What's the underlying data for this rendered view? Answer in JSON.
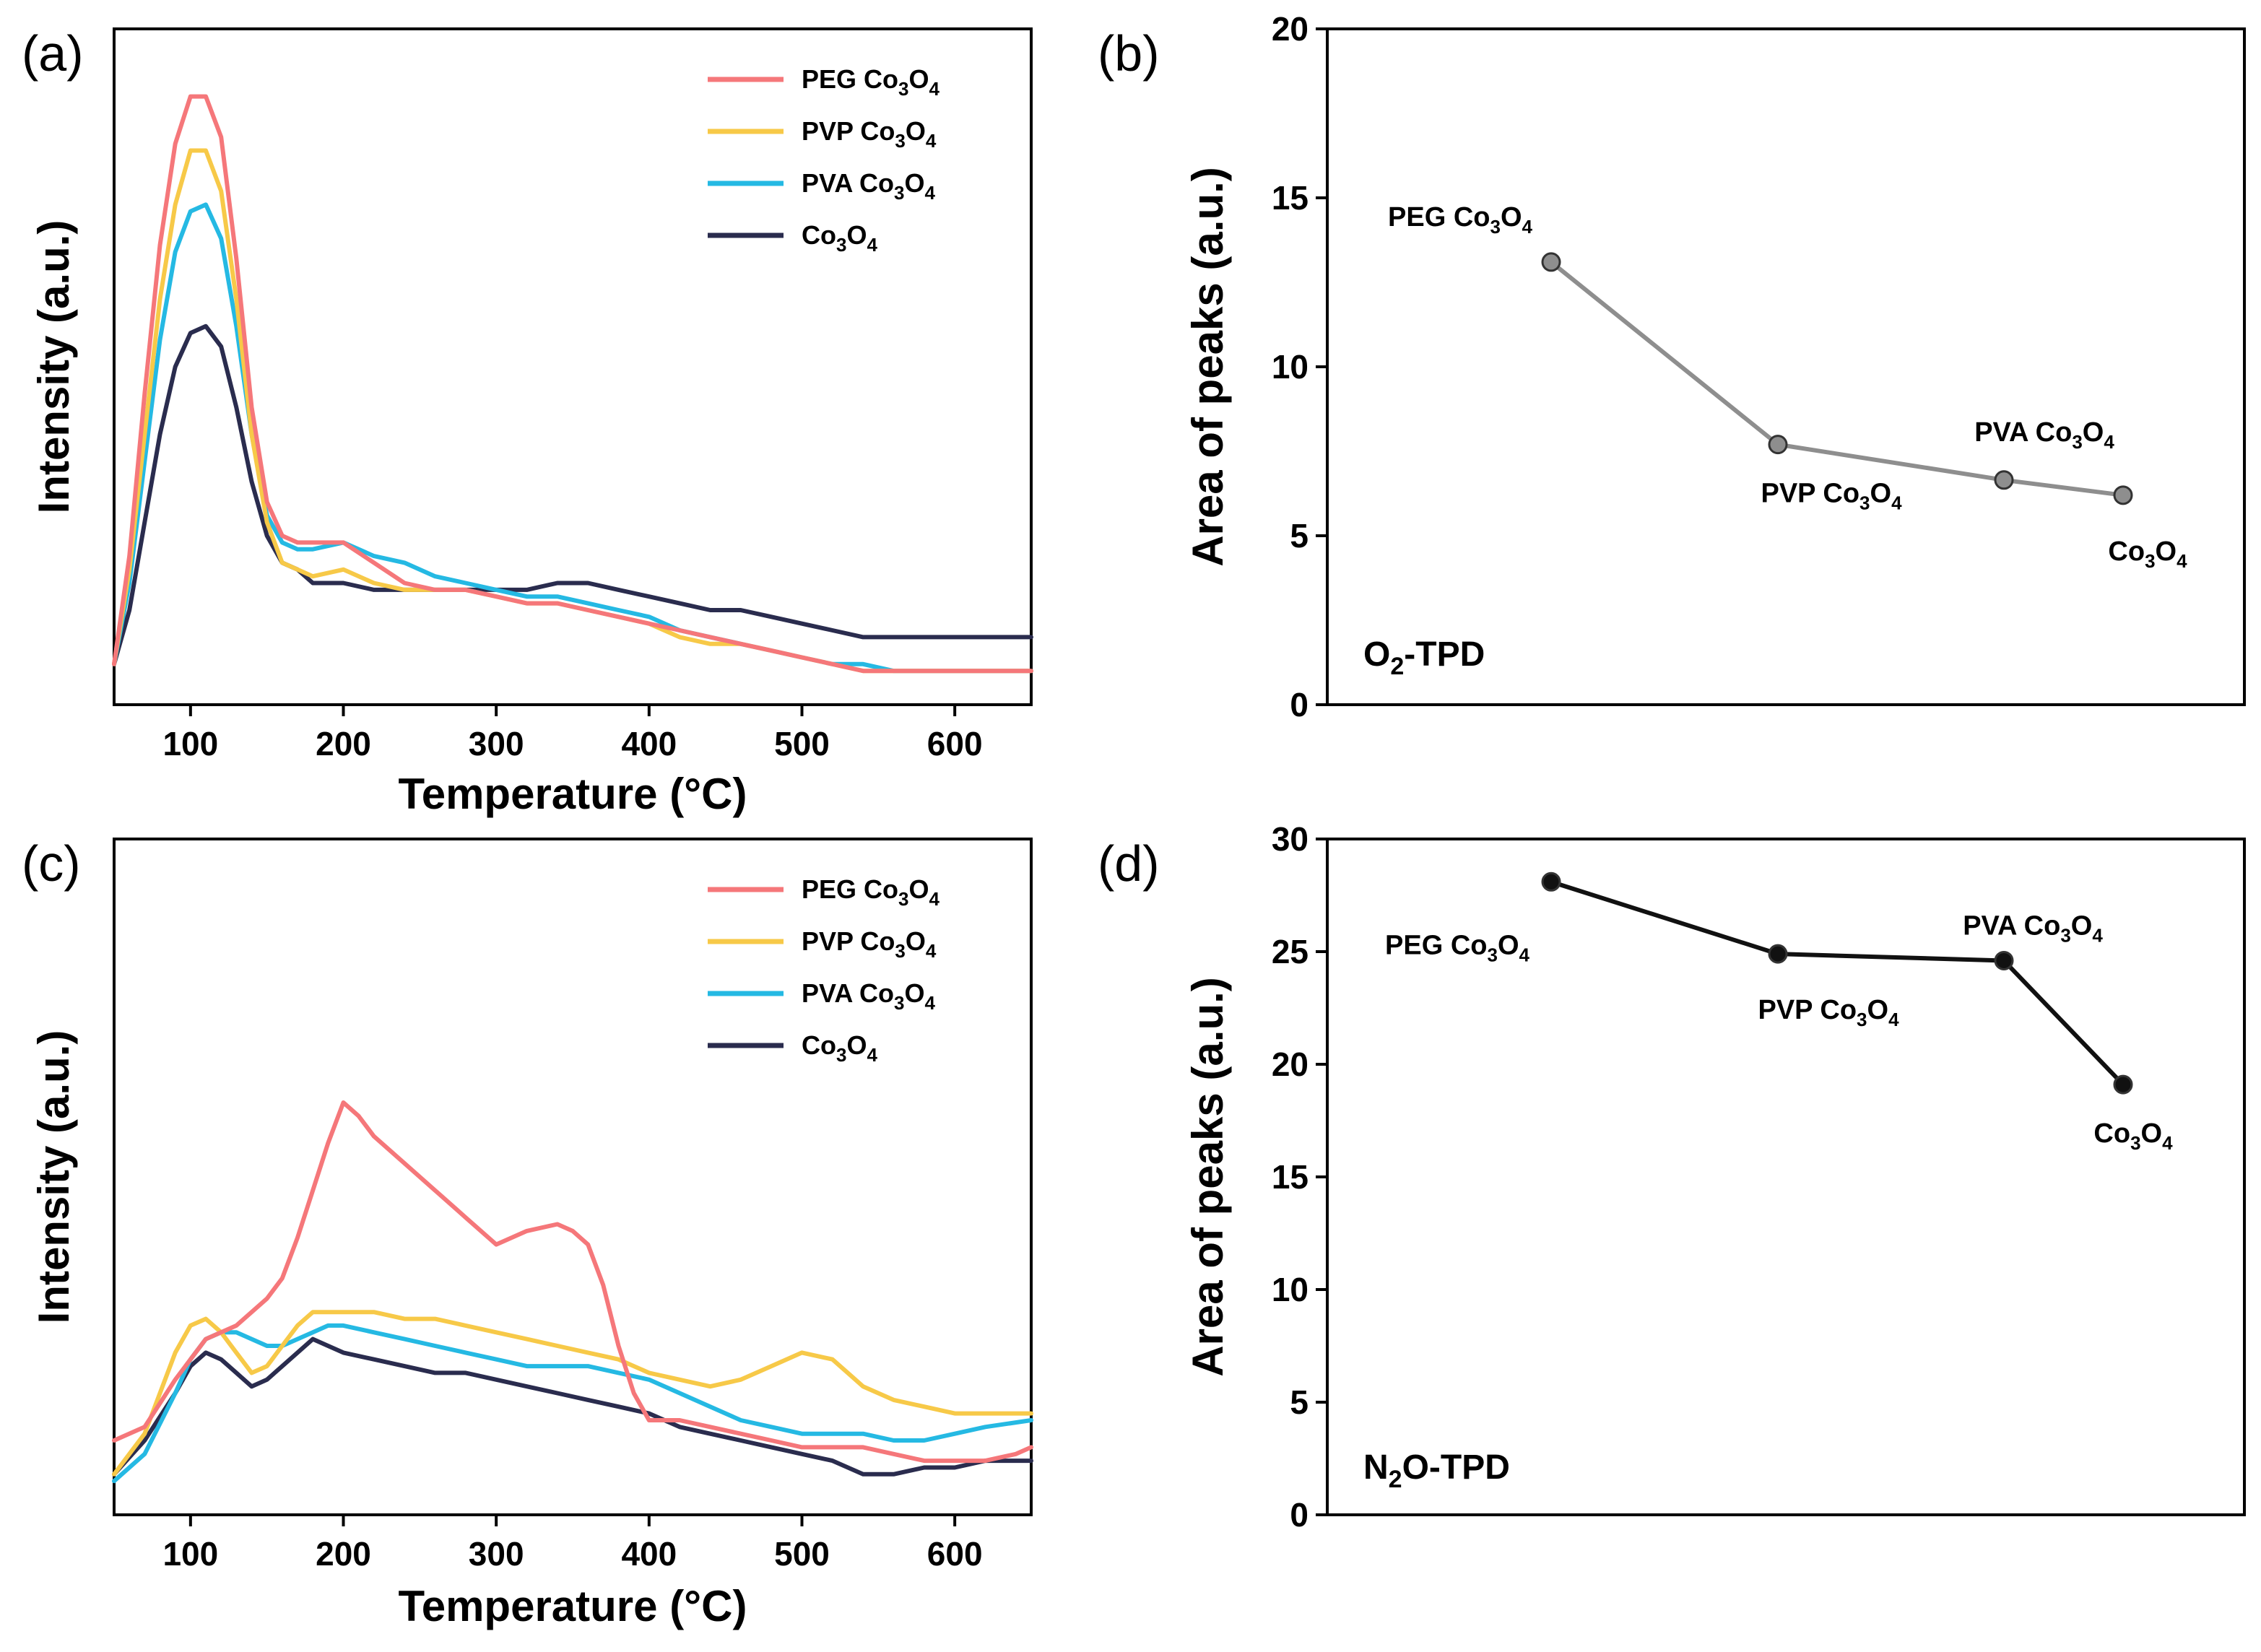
{
  "chart_data": [
    {
      "panel": "(a)",
      "type": "line",
      "xlabel": "Temperature (°C)",
      "ylabel": "Intensity (a.u.)",
      "xlim": [
        50,
        650
      ],
      "ylim": [
        0,
        100
      ],
      "xticks": [
        100,
        200,
        300,
        400,
        500,
        600
      ],
      "legend_position": "top-right",
      "series": [
        {
          "name_main": "PEG Co",
          "sub1": "3",
          "mid": "O",
          "sub2": "4",
          "color": "#f5777a",
          "x": [
            50,
            60,
            70,
            80,
            90,
            100,
            110,
            120,
            130,
            140,
            150,
            160,
            170,
            180,
            200,
            220,
            240,
            260,
            280,
            300,
            320,
            340,
            360,
            380,
            400,
            420,
            440,
            460,
            480,
            500,
            520,
            540,
            560,
            580,
            600,
            620,
            650
          ],
          "y": [
            6,
            22,
            46,
            68,
            83,
            90,
            90,
            84,
            66,
            44,
            30,
            25,
            24,
            24,
            24,
            21,
            18,
            17,
            17,
            16,
            15,
            15,
            14,
            13,
            12,
            11,
            10,
            9,
            8,
            7,
            6,
            5,
            5,
            5,
            5,
            5,
            5
          ]
        },
        {
          "name_main": "PVP Co",
          "sub1": "3",
          "mid": "O",
          "sub2": "4",
          "color": "#f7c948",
          "x": [
            50,
            60,
            70,
            80,
            90,
            100,
            110,
            120,
            130,
            140,
            150,
            160,
            170,
            180,
            200,
            220,
            240,
            260,
            280,
            300,
            320,
            340,
            360,
            380,
            400,
            420,
            440,
            460,
            480,
            500,
            520,
            540,
            560,
            580,
            600,
            620,
            650
          ],
          "y": [
            6,
            20,
            40,
            60,
            74,
            82,
            82,
            76,
            60,
            40,
            27,
            21,
            20,
            19,
            20,
            18,
            17,
            17,
            17,
            16,
            15,
            15,
            14,
            13,
            12,
            10,
            9,
            9,
            8,
            7,
            6,
            5,
            5,
            5,
            5,
            5,
            5
          ]
        },
        {
          "name_main": "PVA Co",
          "sub1": "3",
          "mid": "O",
          "sub2": "4",
          "color": "#25b9e3",
          "x": [
            50,
            60,
            70,
            80,
            90,
            100,
            110,
            120,
            130,
            140,
            150,
            160,
            170,
            180,
            200,
            220,
            240,
            260,
            280,
            300,
            320,
            340,
            360,
            380,
            400,
            420,
            440,
            460,
            480,
            500,
            520,
            540,
            560,
            580,
            600,
            620,
            650
          ],
          "y": [
            6,
            18,
            36,
            54,
            67,
            73,
            74,
            69,
            56,
            40,
            28,
            24,
            23,
            23,
            24,
            22,
            21,
            19,
            18,
            17,
            16,
            16,
            15,
            14,
            13,
            11,
            10,
            9,
            8,
            7,
            6,
            6,
            5,
            5,
            5,
            5,
            5
          ]
        },
        {
          "name_main": "Co",
          "sub1": "3",
          "mid": "O",
          "sub2": "4",
          "color": "#2a2c4e",
          "x": [
            50,
            60,
            70,
            80,
            90,
            100,
            110,
            120,
            130,
            140,
            150,
            160,
            170,
            180,
            200,
            220,
            240,
            260,
            280,
            300,
            320,
            340,
            360,
            380,
            400,
            420,
            440,
            460,
            480,
            500,
            520,
            540,
            560,
            580,
            600,
            620,
            650
          ],
          "y": [
            6,
            14,
            27,
            40,
            50,
            55,
            56,
            53,
            44,
            33,
            25,
            21,
            20,
            18,
            18,
            17,
            17,
            17,
            17,
            17,
            17,
            18,
            18,
            17,
            16,
            15,
            14,
            14,
            13,
            12,
            11,
            10,
            10,
            10,
            10,
            10,
            10
          ]
        }
      ]
    },
    {
      "panel": "(b)",
      "type": "line",
      "ylabel": "Area of peaks (a.u.)",
      "ylim": [
        0,
        20
      ],
      "yticks": [
        0,
        5,
        10,
        15,
        20
      ],
      "annotation_main": "O",
      "annotation_sub": "2",
      "annotation_rest": "-TPD",
      "color": "#8e8e8e",
      "points": [
        {
          "label_main": "PEG Co",
          "value": 13.1
        },
        {
          "label_main": "PVP Co",
          "value": 7.7
        },
        {
          "label_main": "PVA Co",
          "value": 6.65
        },
        {
          "label_main": "Co",
          "value": 6.2
        }
      ]
    },
    {
      "panel": "(c)",
      "type": "line",
      "xlabel": "Temperature (°C)",
      "ylabel": "Intensity (a.u.)",
      "xlim": [
        50,
        650
      ],
      "ylim": [
        0,
        100
      ],
      "xticks": [
        100,
        200,
        300,
        400,
        500,
        600
      ],
      "legend_position": "top-right",
      "series": [
        {
          "name_main": "PEG Co",
          "sub1": "3",
          "mid": "O",
          "sub2": "4",
          "color": "#f5777a",
          "x": [
            50,
            70,
            90,
            110,
            130,
            150,
            160,
            170,
            180,
            190,
            200,
            210,
            220,
            240,
            260,
            280,
            300,
            320,
            340,
            350,
            360,
            370,
            380,
            390,
            400,
            420,
            440,
            460,
            480,
            500,
            520,
            540,
            560,
            580,
            600,
            620,
            640,
            650
          ],
          "y": [
            11,
            13,
            20,
            26,
            28,
            32,
            35,
            41,
            48,
            55,
            61,
            59,
            56,
            52,
            48,
            44,
            40,
            42,
            43,
            42,
            40,
            34,
            25,
            18,
            14,
            14,
            13,
            12,
            11,
            10,
            10,
            10,
            9,
            8,
            8,
            8,
            9,
            10
          ]
        },
        {
          "name_main": "PVP Co",
          "sub1": "3",
          "mid": "O",
          "sub2": "4",
          "color": "#f7c948",
          "x": [
            50,
            70,
            90,
            100,
            110,
            120,
            130,
            140,
            150,
            160,
            170,
            180,
            190,
            200,
            220,
            240,
            260,
            280,
            300,
            320,
            340,
            360,
            380,
            400,
            420,
            440,
            460,
            480,
            500,
            520,
            540,
            560,
            580,
            600,
            620,
            650
          ],
          "y": [
            6,
            12,
            24,
            28,
            29,
            27,
            24,
            21,
            22,
            25,
            28,
            30,
            30,
            30,
            30,
            29,
            29,
            28,
            27,
            26,
            25,
            24,
            23,
            21,
            20,
            19,
            20,
            22,
            24,
            23,
            19,
            17,
            16,
            15,
            15,
            15
          ]
        },
        {
          "name_main": "PVA Co",
          "sub1": "3",
          "mid": "O",
          "sub2": "4",
          "color": "#25b9e3",
          "x": [
            50,
            70,
            90,
            100,
            110,
            120,
            130,
            140,
            150,
            160,
            170,
            180,
            190,
            200,
            220,
            240,
            260,
            280,
            300,
            320,
            340,
            360,
            380,
            400,
            420,
            440,
            460,
            480,
            500,
            520,
            540,
            560,
            580,
            600,
            620,
            650
          ],
          "y": [
            5,
            9,
            18,
            23,
            26,
            27,
            27,
            26,
            25,
            25,
            26,
            27,
            28,
            28,
            27,
            26,
            25,
            24,
            23,
            22,
            22,
            22,
            21,
            20,
            18,
            16,
            14,
            13,
            12,
            12,
            12,
            11,
            11,
            12,
            13,
            14
          ]
        },
        {
          "name_main": "Co",
          "sub1": "3",
          "mid": "O",
          "sub2": "4",
          "color": "#2a2c4e",
          "x": [
            50,
            70,
            90,
            100,
            110,
            120,
            130,
            140,
            150,
            160,
            170,
            180,
            190,
            200,
            220,
            240,
            260,
            280,
            300,
            320,
            340,
            360,
            380,
            400,
            420,
            440,
            460,
            480,
            500,
            520,
            540,
            560,
            580,
            600,
            620,
            650
          ],
          "y": [
            6,
            11,
            18,
            22,
            24,
            23,
            21,
            19,
            20,
            22,
            24,
            26,
            25,
            24,
            23,
            22,
            21,
            21,
            20,
            19,
            18,
            17,
            16,
            15,
            13,
            12,
            11,
            10,
            9,
            8,
            6,
            6,
            7,
            7,
            8,
            8
          ]
        }
      ]
    },
    {
      "panel": "(d)",
      "type": "line",
      "ylabel": "Area of peaks (a.u.)",
      "ylim": [
        0,
        30
      ],
      "yticks": [
        0,
        5,
        10,
        15,
        20,
        25,
        30
      ],
      "annotation_main": "N",
      "annotation_sub": "2",
      "annotation_rest": "O-TPD",
      "color": "#111111",
      "points": [
        {
          "label_main": "PEG Co",
          "value": 28.1
        },
        {
          "label_main": "PVP Co",
          "value": 24.9
        },
        {
          "label_main": "PVA Co",
          "value": 24.6
        },
        {
          "label_main": "Co",
          "value": 19.1
        }
      ]
    }
  ]
}
